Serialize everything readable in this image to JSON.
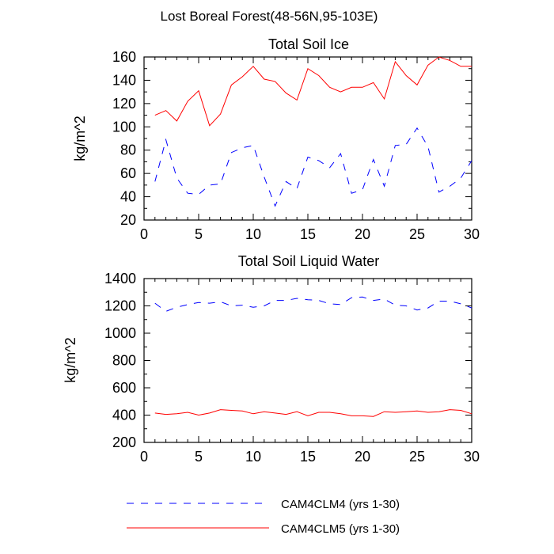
{
  "figure_title": "Lost Boreal Forest(48-56N,95-103E)",
  "chart_data": [
    {
      "type": "line",
      "title": "Total Soil Ice",
      "xlabel": "",
      "ylabel": "kg/m^2",
      "xlim": [
        0,
        30
      ],
      "ylim": [
        20,
        160
      ],
      "xticks": [
        0,
        5,
        10,
        15,
        20,
        25,
        30
      ],
      "yticks": [
        20,
        40,
        60,
        80,
        100,
        120,
        140,
        160
      ],
      "x": [
        1,
        2,
        3,
        4,
        5,
        6,
        7,
        8,
        9,
        10,
        11,
        12,
        13,
        14,
        15,
        16,
        17,
        18,
        19,
        20,
        21,
        22,
        23,
        24,
        25,
        26,
        27,
        28,
        29,
        30
      ],
      "series": [
        {
          "name": "CAM4CLM4 (yrs 1-30)",
          "color": "#0000ff",
          "dash": "dashed",
          "values": [
            53,
            89,
            56,
            43,
            42,
            50,
            51,
            78,
            82,
            84,
            57,
            32,
            53,
            47,
            74,
            71,
            65,
            77,
            43,
            46,
            72,
            49,
            84,
            85,
            99,
            83,
            44,
            49,
            56,
            71
          ]
        },
        {
          "name": "CAM4CLM5 (yrs 1-30)",
          "color": "#ff0000",
          "dash": "solid",
          "values": [
            110,
            114,
            105,
            122,
            131,
            101,
            111,
            136,
            143,
            152,
            141,
            139,
            129,
            123,
            150,
            144,
            134,
            130,
            134,
            134,
            138,
            124,
            156,
            144,
            136,
            153,
            160,
            157,
            152,
            152
          ]
        }
      ]
    },
    {
      "type": "line",
      "title": "Total Soil Liquid Water",
      "xlabel": "",
      "ylabel": "kg/m^2",
      "xlim": [
        0,
        30
      ],
      "ylim": [
        200,
        1400
      ],
      "xticks": [
        0,
        5,
        10,
        15,
        20,
        25,
        30
      ],
      "yticks": [
        200,
        400,
        600,
        800,
        1000,
        1200,
        1400
      ],
      "x": [
        1,
        2,
        3,
        4,
        5,
        6,
        7,
        8,
        9,
        10,
        11,
        12,
        13,
        14,
        15,
        16,
        17,
        18,
        19,
        20,
        21,
        22,
        23,
        24,
        25,
        26,
        27,
        28,
        29,
        30
      ],
      "series": [
        {
          "name": "CAM4CLM4 (yrs 1-30)",
          "color": "#0000ff",
          "dash": "dashed",
          "values": [
            1220,
            1160,
            1190,
            1210,
            1225,
            1220,
            1230,
            1200,
            1205,
            1190,
            1200,
            1240,
            1240,
            1255,
            1245,
            1240,
            1215,
            1210,
            1260,
            1265,
            1240,
            1250,
            1205,
            1200,
            1170,
            1185,
            1235,
            1235,
            1215,
            1185
          ]
        },
        {
          "name": "CAM4CLM5 (yrs 1-30)",
          "color": "#ff0000",
          "dash": "solid",
          "values": [
            415,
            405,
            410,
            420,
            400,
            415,
            440,
            435,
            430,
            410,
            425,
            415,
            405,
            425,
            395,
            420,
            420,
            410,
            395,
            395,
            390,
            425,
            420,
            425,
            430,
            420,
            425,
            440,
            435,
            410
          ]
        }
      ]
    }
  ],
  "legend": [
    {
      "label": "CAM4CLM4 (yrs 1-30)",
      "color": "#0000ff",
      "dash": "dashed"
    },
    {
      "label": "CAM4CLM5 (yrs 1-30)",
      "color": "#ff0000",
      "dash": "solid"
    }
  ]
}
